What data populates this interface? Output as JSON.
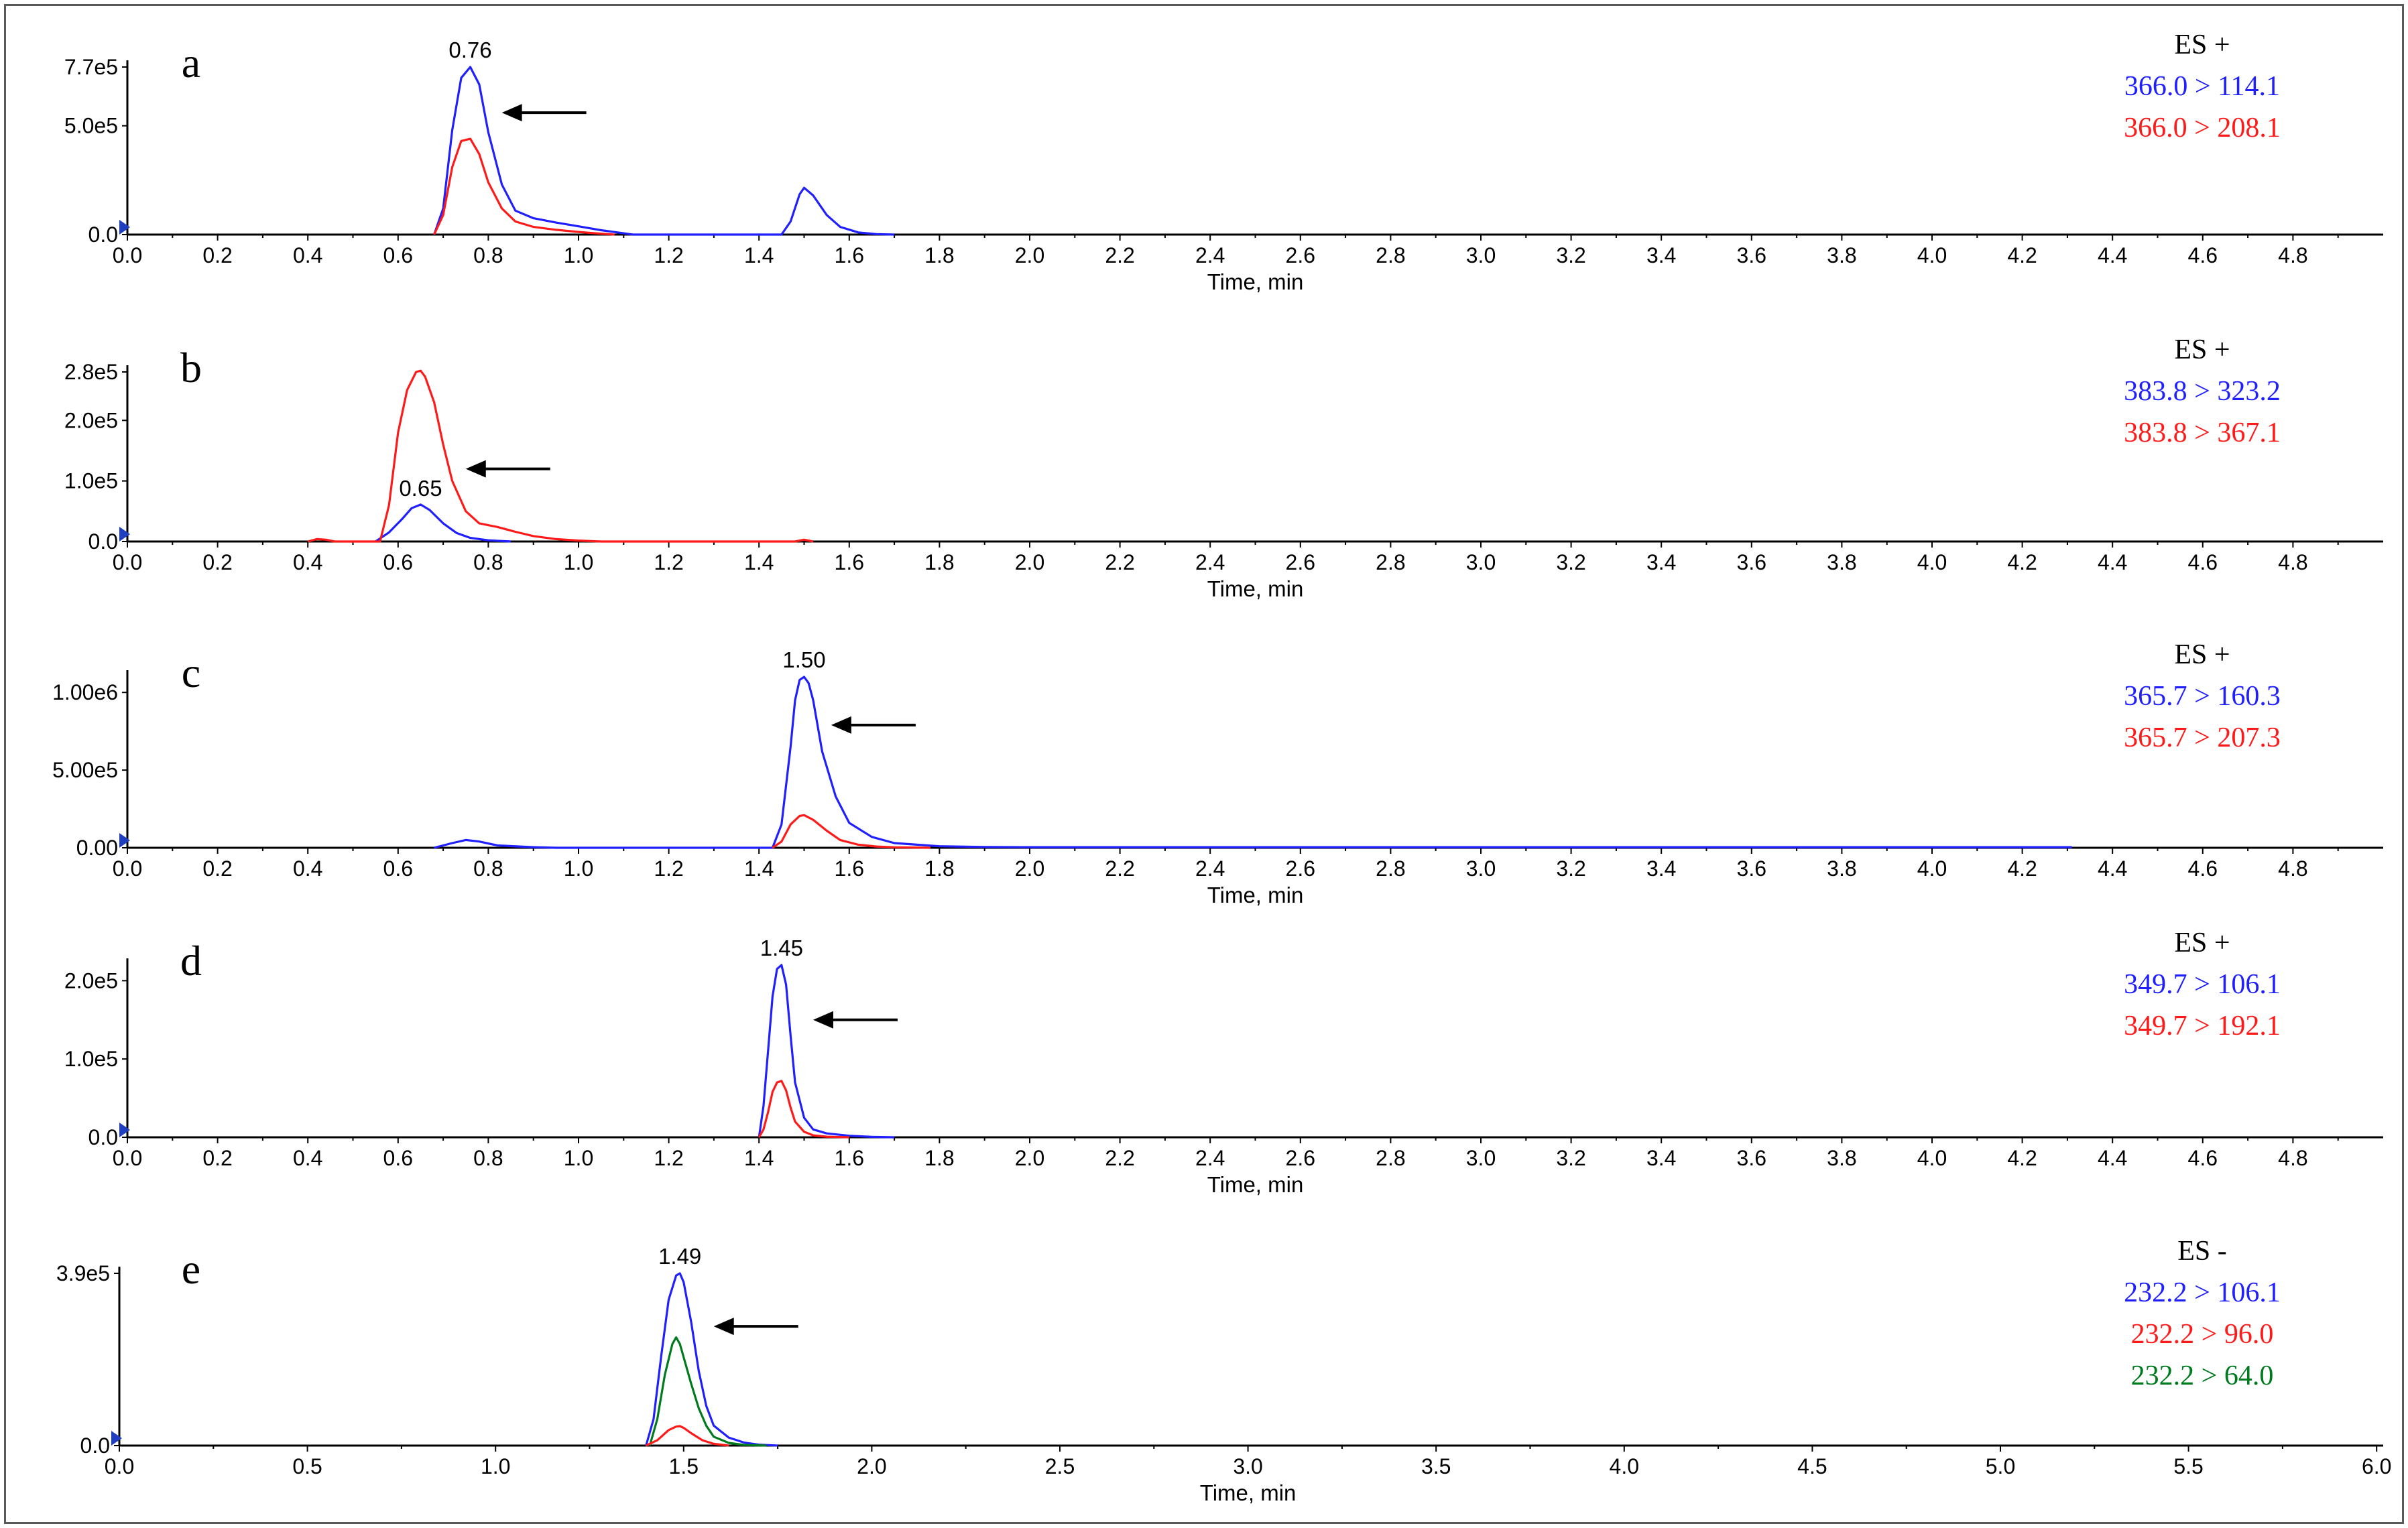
{
  "colors": {
    "blue": "#1f1fff",
    "red": "#ff1a1a",
    "green": "#007a1f",
    "axis": "#000000",
    "marker": "#1f3fbf"
  },
  "chart_data": [
    {
      "type": "line",
      "panel_label": "a",
      "xlabel": "Time, min",
      "ylabel": "",
      "xlim": [
        0,
        5.0
      ],
      "ylim": [
        0,
        770000
      ],
      "x_ticks": [
        "0.0",
        "0.2",
        "0.4",
        "0.6",
        "0.8",
        "1.0",
        "1.2",
        "1.4",
        "1.6",
        "1.8",
        "2.0",
        "2.2",
        "2.4",
        "2.6",
        "2.8",
        "3.0",
        "3.2",
        "3.4",
        "3.6",
        "3.8",
        "4.0",
        "4.2",
        "4.4",
        "4.6",
        "4.8"
      ],
      "y_ticks": [
        {
          "value": 0,
          "label": "0.0"
        },
        {
          "value": 500000,
          "label": "5.0e5"
        },
        {
          "value": 770000,
          "label": "7.7e5"
        }
      ],
      "peak_label": {
        "text": "0.76",
        "x": 0.76,
        "y": 770000
      },
      "arrow": {
        "x": 0.83,
        "y": 560000
      },
      "mode": "ES +",
      "legend": [
        {
          "text": "366.0 > 114.1",
          "color": "blue"
        },
        {
          "text": "366.0 > 208.1",
          "color": "red"
        }
      ],
      "series": [
        {
          "color": "blue",
          "x": [
            0.68,
            0.7,
            0.72,
            0.74,
            0.76,
            0.78,
            0.8,
            0.83,
            0.86,
            0.9,
            0.95,
            1.0,
            1.05,
            1.1,
            1.12,
            1.45,
            1.47,
            1.49,
            1.5,
            1.52,
            1.55,
            1.58,
            1.62,
            1.66,
            1.7
          ],
          "y": [
            0,
            120000,
            480000,
            720000,
            770000,
            690000,
            470000,
            230000,
            110000,
            75000,
            55000,
            38000,
            20000,
            6000,
            0,
            0,
            60000,
            185000,
            215000,
            180000,
            90000,
            35000,
            10000,
            2000,
            0
          ]
        },
        {
          "color": "red",
          "x": [
            0.68,
            0.7,
            0.72,
            0.74,
            0.76,
            0.78,
            0.8,
            0.83,
            0.86,
            0.9,
            0.95,
            1.0,
            1.05,
            1.08
          ],
          "y": [
            0,
            90000,
            310000,
            430000,
            440000,
            370000,
            240000,
            120000,
            60000,
            35000,
            22000,
            12000,
            4000,
            0
          ]
        }
      ]
    },
    {
      "type": "line",
      "panel_label": "b",
      "xlabel": "Time, min",
      "ylabel": "",
      "xlim": [
        0,
        5.0
      ],
      "ylim": [
        0,
        280000
      ],
      "x_ticks": [
        "0.0",
        "0.2",
        "0.4",
        "0.6",
        "0.8",
        "1.0",
        "1.2",
        "1.4",
        "1.6",
        "1.8",
        "2.0",
        "2.2",
        "2.4",
        "2.6",
        "2.8",
        "3.0",
        "3.2",
        "3.4",
        "3.6",
        "3.8",
        "4.0",
        "4.2",
        "4.4",
        "4.6",
        "4.8"
      ],
      "y_ticks": [
        {
          "value": 0,
          "label": "0.0"
        },
        {
          "value": 100000,
          "label": "1.0e5"
        },
        {
          "value": 200000,
          "label": "2.0e5"
        },
        {
          "value": 280000,
          "label": "2.8e5"
        }
      ],
      "peak_label": {
        "text": "0.65",
        "x": 0.65,
        "y": 60000
      },
      "arrow": {
        "x": 0.75,
        "y": 120000
      },
      "mode": "ES +",
      "legend": [
        {
          "text": "383.8 > 323.2",
          "color": "blue"
        },
        {
          "text": "383.8 > 367.1",
          "color": "red"
        }
      ],
      "series": [
        {
          "color": "blue",
          "x": [
            0.55,
            0.58,
            0.61,
            0.63,
            0.65,
            0.67,
            0.7,
            0.73,
            0.76,
            0.8,
            0.85
          ],
          "y": [
            0,
            15000,
            38000,
            55000,
            61000,
            52000,
            30000,
            14000,
            6000,
            2000,
            0
          ]
        },
        {
          "color": "red",
          "x": [
            0.4,
            0.42,
            0.44,
            0.46,
            0.56,
            0.58,
            0.6,
            0.62,
            0.64,
            0.65,
            0.66,
            0.68,
            0.7,
            0.72,
            0.75,
            0.78,
            0.82,
            0.86,
            0.9,
            0.95,
            1.0,
            1.05,
            1.48,
            1.5,
            1.52
          ],
          "y": [
            0,
            4000,
            3000,
            0,
            0,
            60000,
            180000,
            250000,
            280000,
            282000,
            272000,
            230000,
            160000,
            100000,
            50000,
            30000,
            24000,
            16000,
            9000,
            4000,
            1500,
            0,
            0,
            3000,
            0
          ]
        }
      ]
    },
    {
      "type": "line",
      "panel_label": "c",
      "xlabel": "Time, min",
      "ylabel": "",
      "xlim": [
        0,
        5.0
      ],
      "ylim": [
        0,
        1100000
      ],
      "x_ticks": [
        "0.0",
        "0.2",
        "0.4",
        "0.6",
        "0.8",
        "1.0",
        "1.2",
        "1.4",
        "1.6",
        "1.8",
        "2.0",
        "2.2",
        "2.4",
        "2.6",
        "2.8",
        "3.0",
        "3.2",
        "3.4",
        "3.6",
        "3.8",
        "4.0",
        "4.2",
        "4.4",
        "4.6",
        "4.8"
      ],
      "y_ticks": [
        {
          "value": 0,
          "label": "0.00"
        },
        {
          "value": 500000,
          "label": "5.00e5"
        },
        {
          "value": 1000000,
          "label": "1.00e6"
        }
      ],
      "peak_label": {
        "text": "1.50",
        "x": 1.5,
        "y": 1100000
      },
      "arrow": {
        "x": 1.56,
        "y": 790000
      },
      "mode": "ES +",
      "legend": [
        {
          "text": "365.7 > 160.3",
          "color": "blue"
        },
        {
          "text": "365.7 > 207.3",
          "color": "red"
        }
      ],
      "series": [
        {
          "color": "blue",
          "x": [
            0.68,
            0.72,
            0.75,
            0.78,
            0.82,
            0.9,
            0.95,
            1.43,
            1.45,
            1.47,
            1.48,
            1.49,
            1.5,
            1.51,
            1.52,
            1.54,
            1.57,
            1.6,
            1.65,
            1.7,
            1.8,
            1.9,
            2.0,
            3.0,
            4.0,
            4.31
          ],
          "y": [
            0,
            30000,
            50000,
            40000,
            15000,
            4000,
            0,
            0,
            150000,
            650000,
            950000,
            1080000,
            1100000,
            1060000,
            950000,
            620000,
            330000,
            160000,
            70000,
            30000,
            10000,
            5000,
            4000,
            4000,
            4000,
            4000
          ]
        },
        {
          "color": "red",
          "x": [
            1.43,
            1.45,
            1.47,
            1.49,
            1.5,
            1.52,
            1.55,
            1.58,
            1.62,
            1.66,
            1.7,
            1.78
          ],
          "y": [
            0,
            40000,
            150000,
            205000,
            210000,
            180000,
            110000,
            50000,
            20000,
            8000,
            3000,
            0
          ]
        }
      ]
    },
    {
      "type": "line",
      "panel_label": "d",
      "xlabel": "Time, min",
      "ylabel": "",
      "xlim": [
        0,
        5.0
      ],
      "ylim": [
        0,
        220000
      ],
      "x_ticks": [
        "0.0",
        "0.2",
        "0.4",
        "0.6",
        "0.8",
        "1.0",
        "1.2",
        "1.4",
        "1.6",
        "1.8",
        "2.0",
        "2.2",
        "2.4",
        "2.6",
        "2.8",
        "3.0",
        "3.2",
        "3.4",
        "3.6",
        "3.8",
        "4.0",
        "4.2",
        "4.4",
        "4.6",
        "4.8"
      ],
      "y_ticks": [
        {
          "value": 0,
          "label": "0.0"
        },
        {
          "value": 100000,
          "label": "1.0e5"
        },
        {
          "value": 200000,
          "label": "2.0e5"
        }
      ],
      "peak_label": {
        "text": "1.45",
        "x": 1.45,
        "y": 220000
      },
      "arrow": {
        "x": 1.52,
        "y": 150000
      },
      "mode": "ES +",
      "legend": [
        {
          "text": "349.7 > 106.1",
          "color": "blue"
        },
        {
          "text": "349.7 > 192.1",
          "color": "red"
        }
      ],
      "series": [
        {
          "color": "blue",
          "x": [
            1.4,
            1.41,
            1.42,
            1.43,
            1.44,
            1.45,
            1.46,
            1.47,
            1.48,
            1.5,
            1.52,
            1.55,
            1.6,
            1.65,
            1.7
          ],
          "y": [
            0,
            40000,
            110000,
            180000,
            215000,
            220000,
            195000,
            130000,
            70000,
            25000,
            10000,
            5000,
            2000,
            500,
            0
          ]
        },
        {
          "color": "red",
          "x": [
            1.4,
            1.41,
            1.42,
            1.43,
            1.44,
            1.45,
            1.46,
            1.47,
            1.48,
            1.5,
            1.52,
            1.55,
            1.6
          ],
          "y": [
            0,
            10000,
            32000,
            58000,
            70000,
            72000,
            60000,
            38000,
            20000,
            7000,
            2500,
            800,
            0
          ]
        }
      ]
    },
    {
      "type": "line",
      "panel_label": "e",
      "xlabel": "Time, min",
      "ylabel": "",
      "xlim": [
        0,
        6.0
      ],
      "ylim": [
        0,
        390000
      ],
      "x_ticks": [
        "0.0",
        "0.5",
        "1.0",
        "1.5",
        "2.0",
        "2.5",
        "3.0",
        "3.5",
        "4.0",
        "4.5",
        "5.0",
        "5.5",
        "6.0"
      ],
      "y_ticks": [
        {
          "value": 0,
          "label": "0.0"
        },
        {
          "value": 390000,
          "label": "3.9e5"
        }
      ],
      "peak_label": {
        "text": "1.49",
        "x": 1.49,
        "y": 390000
      },
      "arrow": {
        "x": 1.58,
        "y": 270000
      },
      "mode": "ES -",
      "legend": [
        {
          "text": "232.2 > 106.1",
          "color": "blue"
        },
        {
          "text": "232.2 > 96.0",
          "color": "red"
        },
        {
          "text": "232.2 > 64.0",
          "color": "green"
        }
      ],
      "series": [
        {
          "color": "blue",
          "x": [
            1.4,
            1.42,
            1.44,
            1.46,
            1.48,
            1.49,
            1.5,
            1.52,
            1.54,
            1.56,
            1.58,
            1.62,
            1.66,
            1.7,
            1.75
          ],
          "y": [
            0,
            60000,
            200000,
            330000,
            385000,
            390000,
            370000,
            280000,
            170000,
            90000,
            45000,
            18000,
            7000,
            2000,
            0
          ]
        },
        {
          "color": "green",
          "x": [
            1.41,
            1.43,
            1.45,
            1.47,
            1.48,
            1.49,
            1.5,
            1.52,
            1.54,
            1.56,
            1.58,
            1.62,
            1.66,
            1.72
          ],
          "y": [
            0,
            60000,
            160000,
            230000,
            245000,
            230000,
            200000,
            140000,
            85000,
            45000,
            20000,
            6000,
            1500,
            0
          ]
        },
        {
          "color": "red",
          "x": [
            1.4,
            1.43,
            1.46,
            1.48,
            1.49,
            1.5,
            1.52,
            1.55,
            1.58,
            1.62
          ],
          "y": [
            0,
            12000,
            35000,
            43000,
            44000,
            40000,
            28000,
            12000,
            4000,
            0
          ]
        }
      ]
    }
  ]
}
